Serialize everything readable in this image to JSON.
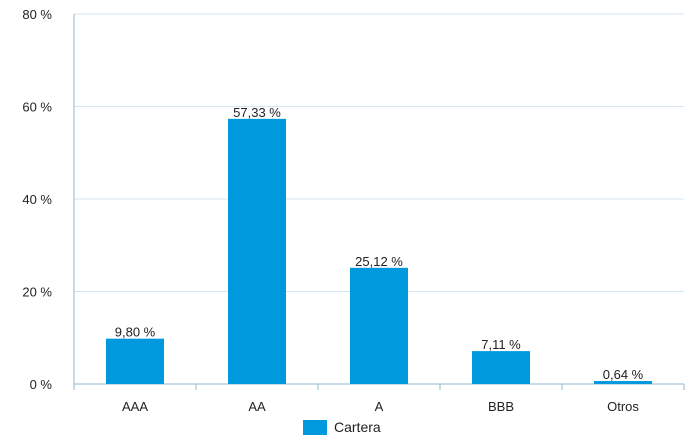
{
  "chart_data": {
    "type": "bar",
    "categories": [
      "AAA",
      "AA",
      "A",
      "BBB",
      "Otros"
    ],
    "series": [
      {
        "name": "Cartera",
        "values": [
          9.8,
          57.33,
          25.12,
          7.11,
          0.64
        ],
        "labels": [
          "9,80 %",
          "57,33 %",
          "25,12 %",
          "7,11 %",
          "0,64 %"
        ],
        "color": "#0099DD"
      }
    ],
    "ylim": [
      0,
      80
    ],
    "yticks": [
      0,
      20,
      40,
      60,
      80
    ],
    "ytick_labels": [
      "0 %",
      "20 %",
      "40 %",
      "60 %",
      "80 %"
    ],
    "grid": true,
    "legend_position": "bottom",
    "title": "",
    "xlabel": "",
    "ylabel": ""
  },
  "colors": {
    "bar": "#0099DD",
    "axis": "#8fb8cf",
    "grid": "#d4e6f0"
  }
}
